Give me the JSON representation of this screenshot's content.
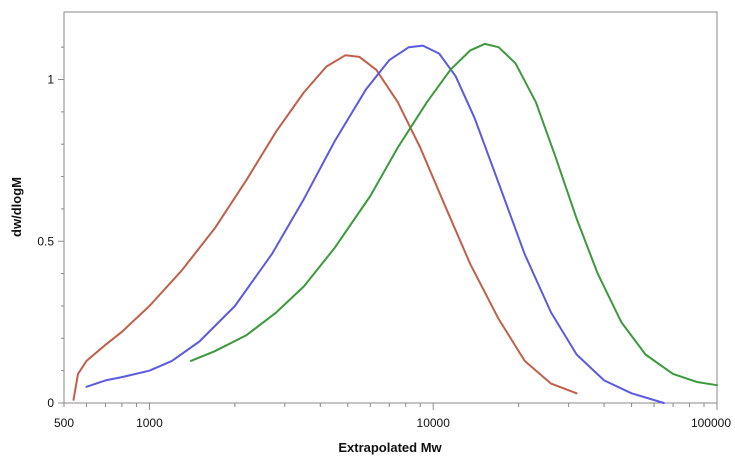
{
  "chart_data": {
    "type": "line",
    "title": "",
    "xlabel": "Extrapolated Mw",
    "ylabel": "dw/dlogM",
    "xscale": "log",
    "xlim": [
      500,
      100000
    ],
    "ylim": [
      0,
      1.15
    ],
    "x_tick_labels": [
      {
        "value": 500,
        "label": "500"
      },
      {
        "value": 1000,
        "label": "1000"
      },
      {
        "value": 10000,
        "label": "10000"
      },
      {
        "value": 100000,
        "label": "100000"
      }
    ],
    "y_tick_labels": [
      {
        "value": 0,
        "label": "0"
      },
      {
        "value": 0.5,
        "label": "0.5"
      },
      {
        "value": 1,
        "label": "1"
      }
    ],
    "grid": false,
    "legend": "none",
    "series": [
      {
        "color": "#c0604a",
        "points": [
          [
            540,
            0.01
          ],
          [
            560,
            0.09
          ],
          [
            600,
            0.13
          ],
          [
            700,
            0.18
          ],
          [
            800,
            0.22
          ],
          [
            1000,
            0.3
          ],
          [
            1300,
            0.41
          ],
          [
            1700,
            0.54
          ],
          [
            2200,
            0.69
          ],
          [
            2800,
            0.84
          ],
          [
            3500,
            0.96
          ],
          [
            4200,
            1.04
          ],
          [
            4900,
            1.075
          ],
          [
            5500,
            1.07
          ],
          [
            6300,
            1.03
          ],
          [
            7500,
            0.93
          ],
          [
            9000,
            0.79
          ],
          [
            11000,
            0.61
          ],
          [
            13500,
            0.43
          ],
          [
            17000,
            0.26
          ],
          [
            21000,
            0.13
          ],
          [
            26000,
            0.06
          ],
          [
            32000,
            0.03
          ]
        ]
      },
      {
        "color": "#5b5be0",
        "points": [
          [
            600,
            0.05
          ],
          [
            700,
            0.07
          ],
          [
            800,
            0.08
          ],
          [
            1000,
            0.1
          ],
          [
            1200,
            0.13
          ],
          [
            1500,
            0.19
          ],
          [
            2000,
            0.3
          ],
          [
            2700,
            0.46
          ],
          [
            3500,
            0.63
          ],
          [
            4500,
            0.81
          ],
          [
            5800,
            0.97
          ],
          [
            7000,
            1.06
          ],
          [
            8200,
            1.1
          ],
          [
            9200,
            1.105
          ],
          [
            10500,
            1.08
          ],
          [
            12000,
            1.01
          ],
          [
            14000,
            0.88
          ],
          [
            17000,
            0.68
          ],
          [
            21000,
            0.46
          ],
          [
            26000,
            0.28
          ],
          [
            32000,
            0.15
          ],
          [
            40000,
            0.07
          ],
          [
            50000,
            0.03
          ],
          [
            65000,
            0.0
          ]
        ]
      },
      {
        "color": "#3c9a3c",
        "points": [
          [
            1400,
            0.13
          ],
          [
            1700,
            0.16
          ],
          [
            2200,
            0.21
          ],
          [
            2800,
            0.28
          ],
          [
            3500,
            0.36
          ],
          [
            4500,
            0.48
          ],
          [
            6000,
            0.64
          ],
          [
            7500,
            0.79
          ],
          [
            9500,
            0.93
          ],
          [
            11500,
            1.03
          ],
          [
            13500,
            1.09
          ],
          [
            15200,
            1.11
          ],
          [
            17000,
            1.1
          ],
          [
            19500,
            1.05
          ],
          [
            23000,
            0.93
          ],
          [
            27000,
            0.76
          ],
          [
            32000,
            0.57
          ],
          [
            38000,
            0.4
          ],
          [
            46000,
            0.25
          ],
          [
            56000,
            0.15
          ],
          [
            70000,
            0.09
          ],
          [
            85000,
            0.065
          ],
          [
            100000,
            0.055
          ]
        ]
      }
    ]
  }
}
